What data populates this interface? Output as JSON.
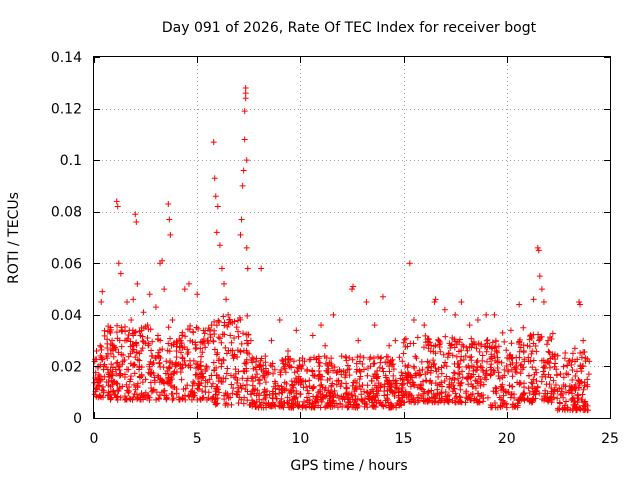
{
  "chart_data": {
    "type": "scatter",
    "title": "Day 091 of 2026, Rate Of TEC Index for receiver bogt",
    "xlabel": "GPS time / hours",
    "ylabel": "ROTI / TECUs",
    "xlim": [
      0,
      25
    ],
    "ylim": [
      0,
      0.14
    ],
    "xticks": [
      "0",
      "5",
      "10",
      "15",
      "20",
      "25"
    ],
    "yticks": [
      "0",
      "0.02",
      "0.04",
      "0.06",
      "0.08",
      "0.1",
      "0.12",
      "0.14"
    ],
    "xtick_values": [
      0,
      5,
      10,
      15,
      20,
      25
    ],
    "ytick_values": [
      0,
      0.02,
      0.04,
      0.06,
      0.08,
      0.1,
      0.12,
      0.14
    ],
    "grid": true,
    "marker": "plus",
    "series": [
      {
        "name": "ROTI",
        "color": "#ff0000",
        "points": [
          [
            0.1,
            0.012
          ],
          [
            0.2,
            0.02
          ],
          [
            0.3,
            0.028
          ],
          [
            0.35,
            0.045
          ],
          [
            0.4,
            0.049
          ],
          [
            0.5,
            0.016
          ],
          [
            0.6,
            0.024
          ],
          [
            0.7,
            0.01
          ],
          [
            0.8,
            0.033
          ],
          [
            0.9,
            0.018
          ],
          [
            1.0,
            0.014
          ],
          [
            1.1,
            0.084
          ],
          [
            1.15,
            0.082
          ],
          [
            1.2,
            0.06
          ],
          [
            1.3,
            0.056
          ],
          [
            1.4,
            0.022
          ],
          [
            1.5,
            0.03
          ],
          [
            1.6,
            0.045
          ],
          [
            1.7,
            0.012
          ],
          [
            1.8,
            0.038
          ],
          [
            1.9,
            0.046
          ],
          [
            2.0,
            0.079
          ],
          [
            2.05,
            0.076
          ],
          [
            2.1,
            0.052
          ],
          [
            2.2,
            0.02
          ],
          [
            2.3,
            0.034
          ],
          [
            2.4,
            0.041
          ],
          [
            2.5,
            0.015
          ],
          [
            2.6,
            0.036
          ],
          [
            2.7,
            0.048
          ],
          [
            2.8,
            0.024
          ],
          [
            2.9,
            0.011
          ],
          [
            3.0,
            0.043
          ],
          [
            3.1,
            0.032
          ],
          [
            3.2,
            0.06
          ],
          [
            3.3,
            0.061
          ],
          [
            3.4,
            0.05
          ],
          [
            3.5,
            0.022
          ],
          [
            3.6,
            0.083
          ],
          [
            3.65,
            0.077
          ],
          [
            3.7,
            0.071
          ],
          [
            3.8,
            0.038
          ],
          [
            3.9,
            0.018
          ],
          [
            4.0,
            0.026
          ],
          [
            4.2,
            0.03
          ],
          [
            4.4,
            0.05
          ],
          [
            4.6,
            0.052
          ],
          [
            4.8,
            0.014
          ],
          [
            5.0,
            0.048
          ],
          [
            5.1,
            0.02
          ],
          [
            5.3,
            0.016
          ],
          [
            5.5,
            0.03
          ],
          [
            5.7,
            0.036
          ],
          [
            5.8,
            0.107
          ],
          [
            5.85,
            0.093
          ],
          [
            5.9,
            0.086
          ],
          [
            5.95,
            0.072
          ],
          [
            6.0,
            0.082
          ],
          [
            6.1,
            0.067
          ],
          [
            6.2,
            0.058
          ],
          [
            6.3,
            0.052
          ],
          [
            6.4,
            0.046
          ],
          [
            6.5,
            0.04
          ],
          [
            6.6,
            0.032
          ],
          [
            6.8,
            0.024
          ],
          [
            7.0,
            0.018
          ],
          [
            7.1,
            0.071
          ],
          [
            7.15,
            0.077
          ],
          [
            7.2,
            0.09
          ],
          [
            7.25,
            0.096
          ],
          [
            7.3,
            0.108
          ],
          [
            7.3,
            0.119
          ],
          [
            7.35,
            0.124
          ],
          [
            7.35,
            0.128
          ],
          [
            7.35,
            0.126
          ],
          [
            7.4,
            0.1
          ],
          [
            7.4,
            0.066
          ],
          [
            7.45,
            0.058
          ],
          [
            7.6,
            0.03
          ],
          [
            7.9,
            0.017
          ],
          [
            8.1,
            0.058
          ],
          [
            8.3,
            0.024
          ],
          [
            8.6,
            0.03
          ],
          [
            9.0,
            0.038
          ],
          [
            9.4,
            0.026
          ],
          [
            9.8,
            0.034
          ],
          [
            10.2,
            0.022
          ],
          [
            10.6,
            0.032
          ],
          [
            11.0,
            0.036
          ],
          [
            11.2,
            0.028
          ],
          [
            11.6,
            0.04
          ],
          [
            12.0,
            0.024
          ],
          [
            12.5,
            0.05
          ],
          [
            12.55,
            0.051
          ],
          [
            12.8,
            0.03
          ],
          [
            13.2,
            0.045
          ],
          [
            13.6,
            0.036
          ],
          [
            14.0,
            0.047
          ],
          [
            14.3,
            0.028
          ],
          [
            14.6,
            0.03
          ],
          [
            15.0,
            0.025
          ],
          [
            15.3,
            0.06
          ],
          [
            15.5,
            0.038
          ],
          [
            16.0,
            0.036
          ],
          [
            16.5,
            0.045
          ],
          [
            16.55,
            0.046
          ],
          [
            17.0,
            0.042
          ],
          [
            17.5,
            0.04
          ],
          [
            17.8,
            0.045
          ],
          [
            18.2,
            0.036
          ],
          [
            18.6,
            0.038
          ],
          [
            19.0,
            0.04
          ],
          [
            19.4,
            0.04
          ],
          [
            19.8,
            0.033
          ],
          [
            20.2,
            0.034
          ],
          [
            20.6,
            0.044
          ],
          [
            20.8,
            0.035
          ],
          [
            21.0,
            0.028
          ],
          [
            21.3,
            0.046
          ],
          [
            21.5,
            0.066
          ],
          [
            21.55,
            0.065
          ],
          [
            21.6,
            0.055
          ],
          [
            21.7,
            0.05
          ],
          [
            21.8,
            0.045
          ],
          [
            22.0,
            0.03
          ],
          [
            22.3,
            0.024
          ],
          [
            22.6,
            0.017
          ],
          [
            23.0,
            0.022
          ],
          [
            23.3,
            0.027
          ],
          [
            23.5,
            0.045
          ],
          [
            23.55,
            0.044
          ],
          [
            23.7,
            0.03
          ],
          [
            23.9,
            0.015
          ]
        ],
        "band": {
          "segments": [
            [
              0.0,
              0.45,
              0.008,
              0.028
            ],
            [
              0.45,
              5.8,
              0.007,
              0.036
            ],
            [
              5.8,
              7.6,
              0.005,
              0.04
            ],
            [
              7.6,
              15.0,
              0.004,
              0.024
            ],
            [
              15.0,
              19.2,
              0.006,
              0.032
            ],
            [
              19.2,
              20.6,
              0.004,
              0.03
            ],
            [
              20.6,
              22.4,
              0.006,
              0.033
            ],
            [
              22.4,
              24.0,
              0.003,
              0.026
            ]
          ],
          "count": 2000
        }
      }
    ]
  }
}
